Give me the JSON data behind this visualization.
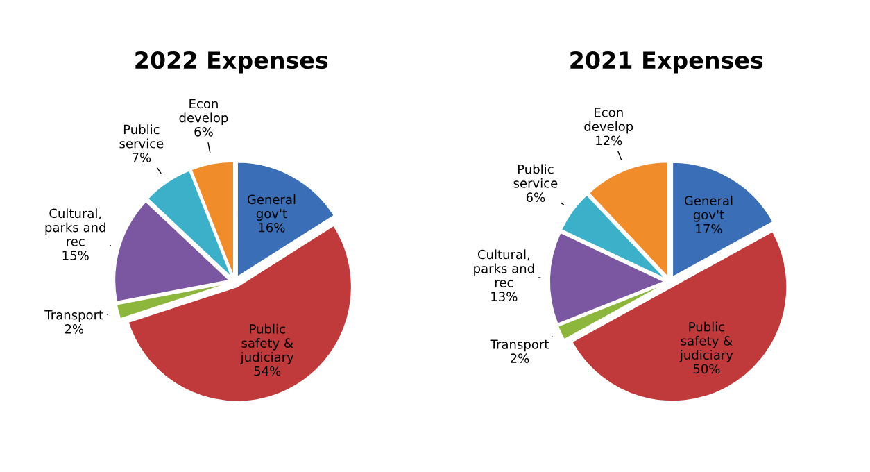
{
  "chart_data": [
    {
      "type": "pie",
      "title": "2022 Expenses",
      "categories": [
        "General\ngov't",
        "Public\nsafety &\njudiciary",
        "Transport",
        "Cultural,\nparks and\nrec",
        "Public\nservice",
        "Econ\ndevelop"
      ],
      "values": [
        16,
        54,
        2,
        15,
        7,
        6
      ],
      "value_labels": [
        "16%",
        "54%",
        "2%",
        "15%",
        "7%",
        "6%"
      ],
      "colors": [
        "#3a6fb8",
        "#c0393b",
        "#8db63c",
        "#7a57a0",
        "#3bb0c8",
        "#f08c2a"
      ]
    },
    {
      "type": "pie",
      "title": "2021 Expenses",
      "categories": [
        "General\ngov't",
        "Public\nsafety &\njudiciary",
        "Transport",
        "Cultural,\nparks and\nrec",
        "Public\nservice",
        "Econ\ndevelop"
      ],
      "values": [
        17,
        50,
        2,
        13,
        6,
        12
      ],
      "value_labels": [
        "17%",
        "50%",
        "2%",
        "13%",
        "6%",
        "12%"
      ],
      "colors": [
        "#3a6fb8",
        "#c0393b",
        "#8db63c",
        "#7a57a0",
        "#3bb0c8",
        "#f08c2a"
      ]
    }
  ]
}
